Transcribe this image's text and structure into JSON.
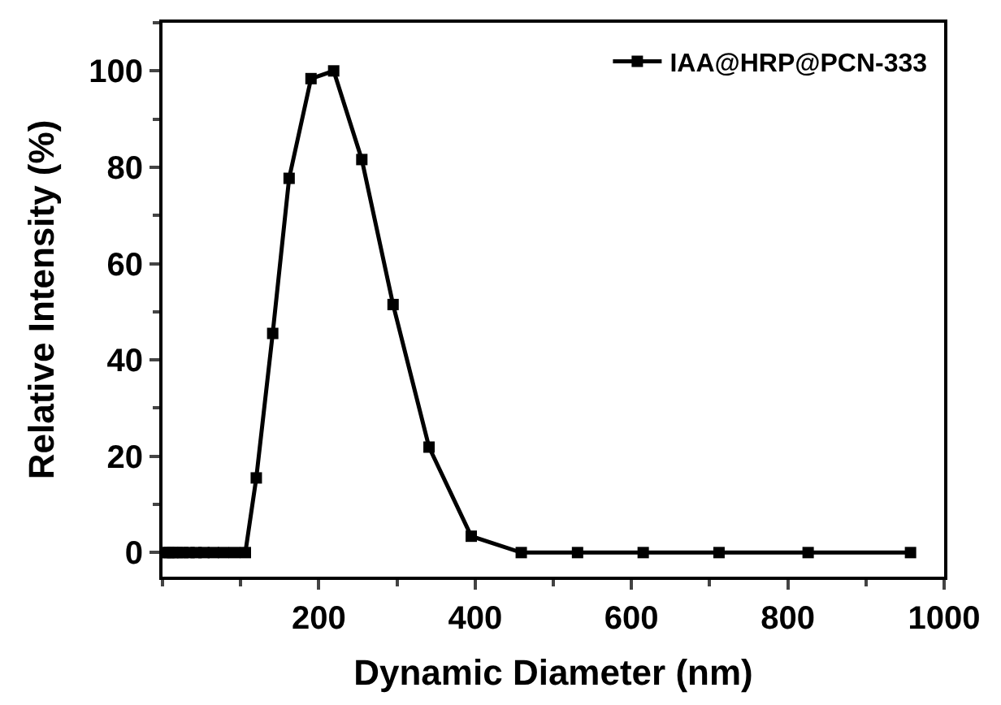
{
  "chart_data": {
    "type": "line",
    "xlabel": "Dynamic Diameter (nm)",
    "ylabel": "Relative Intensity (%)",
    "xlim": [
      0,
      1000
    ],
    "xticks": [
      200,
      400,
      600,
      800,
      1000
    ],
    "ylim": [
      -5,
      110
    ],
    "yticks": [
      0,
      20,
      40,
      60,
      80,
      100
    ],
    "legend": "top right",
    "marker": "square",
    "line_style": "solid",
    "series": [
      {
        "name": "IAA@HRP@PCN-333",
        "color": "#000000",
        "x": [
          4,
          8,
          13,
          19,
          26,
          34,
          43,
          53,
          65,
          78,
          92,
          106,
          120,
          141,
          162,
          190,
          219,
          255,
          295,
          341,
          395,
          459,
          531,
          615,
          712,
          826,
          957
        ],
        "values": [
          0,
          0,
          0,
          0,
          0,
          0,
          0,
          0,
          0,
          0,
          0,
          0,
          15.5,
          45.5,
          77.7,
          98.4,
          100,
          81.6,
          51.5,
          21.9,
          3.4,
          0,
          0,
          0,
          0,
          0,
          0
        ]
      }
    ]
  }
}
